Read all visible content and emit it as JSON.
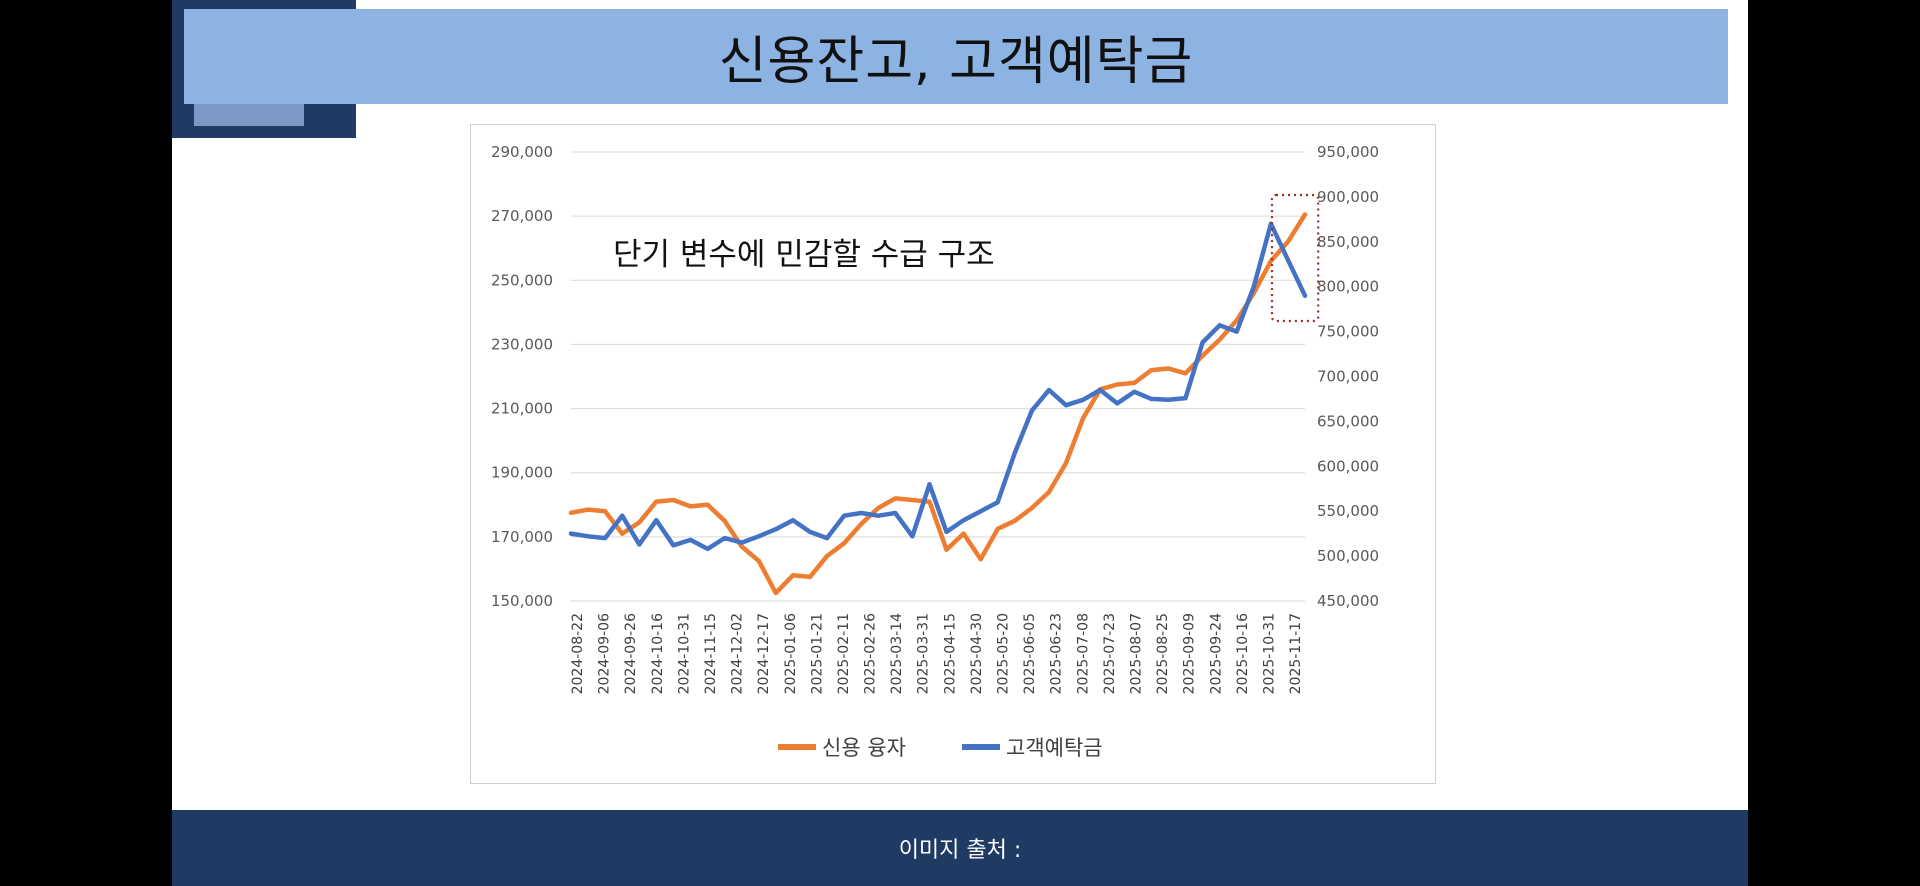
{
  "slide": {
    "title": "신용잔고, 고객예탁금",
    "footer_text": "이미지 출처 :"
  },
  "chart_data": {
    "type": "line",
    "title": "",
    "annotation": "단기 변수에 민감할 수급 구조",
    "x_tick_labels": [
      "2024-08-22",
      "2024-09-06",
      "2024-09-26",
      "2024-10-16",
      "2024-10-31",
      "2024-11-15",
      "2024-12-02",
      "2024-12-17",
      "2025-01-06",
      "2025-01-21",
      "2025-02-11",
      "2025-02-26",
      "2025-03-14",
      "2025-03-31",
      "2025-04-15",
      "2025-04-30",
      "2025-05-20",
      "2025-06-05",
      "2025-06-23",
      "2025-07-08",
      "2025-07-23",
      "2025-08-07",
      "2025-08-25",
      "2025-09-09",
      "2025-09-24",
      "2025-10-16",
      "2025-10-31",
      "2025-11-17"
    ],
    "left_axis": {
      "min": 150000,
      "max": 290000,
      "ticks": [
        "290,000",
        "270,000",
        "250,000",
        "230,000",
        "210,000",
        "190,000",
        "170,000",
        "150,000"
      ]
    },
    "right_axis": {
      "min": 450000,
      "max": 950000,
      "ticks": [
        "950,000",
        "900,000",
        "850,000",
        "800,000",
        "750,000",
        "700,000",
        "650,000",
        "600,000",
        "550,000",
        "500,000",
        "450,000"
      ]
    },
    "highlight": "dotted-box-recent-period",
    "series": [
      {
        "name": "신용 융자",
        "axis": "left",
        "color": "#ed7d31",
        "values": [
          177500,
          178500,
          178000,
          171000,
          174500,
          181000,
          181500,
          179500,
          180000,
          175000,
          167000,
          162500,
          152500,
          158000,
          157500,
          164000,
          168000,
          174000,
          179000,
          182000,
          181500,
          181000,
          166000,
          171000,
          163000,
          172500,
          175000,
          179000,
          184000,
          193000,
          207000,
          216000,
          217500,
          218000,
          222000,
          222500,
          221000,
          226500,
          231500,
          237500,
          246000,
          256000,
          262000,
          270500
        ]
      },
      {
        "name": "고객예탁금",
        "axis": "right",
        "color": "#4472c4",
        "values": [
          525000,
          522000,
          520000,
          545000,
          513000,
          540000,
          512000,
          518000,
          508000,
          520000,
          515000,
          522000,
          530000,
          540000,
          527000,
          520000,
          545000,
          548000,
          545000,
          548000,
          522000,
          580000,
          527000,
          540000,
          550000,
          560000,
          615000,
          662000,
          685000,
          668000,
          674000,
          685000,
          670000,
          683000,
          675000,
          674000,
          676000,
          738000,
          757000,
          750000,
          800000,
          870000,
          830000,
          790000
        ]
      }
    ],
    "legend": [
      "신용 융자",
      "고객예탁금"
    ],
    "legend_position": "bottom"
  }
}
